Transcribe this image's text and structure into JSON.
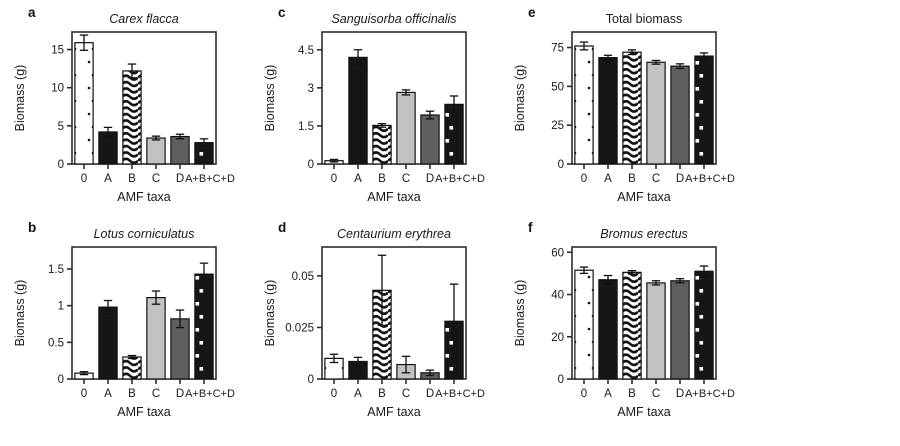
{
  "styles": {
    "background": "#ffffff",
    "frame_color": "#2e2e2e",
    "text_color": "#1a1a1a",
    "bar_outline": "#111111",
    "bar_styles": [
      {
        "key": "0",
        "pattern": "dots",
        "fill": "#ffffff",
        "accent": "#111111",
        "description": "white-with-black-dots"
      },
      {
        "key": "A",
        "pattern": "solid",
        "fill": "#161616",
        "description": "solid-black"
      },
      {
        "key": "B",
        "pattern": "waves",
        "fill": "#ffffff",
        "accent": "#111111",
        "description": "black-wavy-stripes-on-white"
      },
      {
        "key": "C",
        "pattern": "solid",
        "fill": "#c2c2c2",
        "description": "light-gray"
      },
      {
        "key": "D",
        "pattern": "solid",
        "fill": "#5f5f5f",
        "description": "dark-gray"
      },
      {
        "key": "A+B+C+D",
        "pattern": "squares",
        "fill": "#161616",
        "accent": "#ffffff",
        "description": "black-with-white-squares"
      }
    ]
  },
  "chart_data": [
    {
      "panel_label": "a",
      "type": "bar",
      "title": "Carex flacca",
      "title_italic": true,
      "xlabel": "AMF taxa",
      "ylabel": "Biomass (g)",
      "categories": [
        "0",
        "A",
        "B",
        "C",
        "D",
        "A+B+C+D"
      ],
      "values": [
        15.9,
        4.2,
        12.2,
        3.4,
        3.6,
        2.8
      ],
      "errors": [
        1.0,
        0.6,
        0.9,
        0.25,
        0.3,
        0.5
      ],
      "ylim": [
        0,
        17.3
      ],
      "yticks": [
        0,
        5,
        10,
        15
      ],
      "ytick_labels": [
        "0",
        "5",
        "10",
        "15"
      ],
      "grid": false
    },
    {
      "panel_label": "b",
      "type": "bar",
      "title": "Lotus corniculatus",
      "title_italic": true,
      "xlabel": "AMF taxa",
      "ylabel": "Biomass (g)",
      "categories": [
        "0",
        "A",
        "B",
        "C",
        "D",
        "A+B+C+D"
      ],
      "values": [
        0.08,
        0.98,
        0.3,
        1.11,
        0.82,
        1.43
      ],
      "errors": [
        0.02,
        0.09,
        0.02,
        0.09,
        0.12,
        0.15
      ],
      "ylim": [
        0,
        1.8
      ],
      "yticks": [
        0,
        0.5,
        1,
        1.5
      ],
      "ytick_labels": [
        "0",
        "0.5",
        "1",
        "1.5"
      ],
      "grid": false
    },
    {
      "panel_label": "c",
      "type": "bar",
      "title": "Sanguisorba officinalis",
      "title_italic": true,
      "xlabel": "AMF taxa",
      "ylabel": "Biomass (g)",
      "categories": [
        "0",
        "A",
        "B",
        "C",
        "D",
        "A+B+C+D"
      ],
      "values": [
        0.13,
        4.2,
        1.52,
        2.82,
        1.93,
        2.35
      ],
      "errors": [
        0.05,
        0.3,
        0.07,
        0.1,
        0.15,
        0.33
      ],
      "ylim": [
        0,
        5.2
      ],
      "yticks": [
        0,
        1.5,
        3,
        4.5
      ],
      "ytick_labels": [
        "0",
        "1.5",
        "3",
        "4.5"
      ],
      "grid": false
    },
    {
      "panel_label": "d",
      "type": "bar",
      "title": "Centaurium erythrea",
      "title_italic": true,
      "xlabel": "AMF taxa",
      "ylabel": "Biomass (g)",
      "categories": [
        "0",
        "A",
        "B",
        "C",
        "D",
        "A+B+C+D"
      ],
      "values": [
        0.01,
        0.0085,
        0.043,
        0.007,
        0.003,
        0.028
      ],
      "errors": [
        0.002,
        0.002,
        0.017,
        0.004,
        0.0013,
        0.018
      ],
      "ylim": [
        0,
        0.064
      ],
      "yticks": [
        0,
        0.025,
        0.05
      ],
      "ytick_labels": [
        "0",
        "0.025",
        "0.05"
      ],
      "grid": false
    },
    {
      "panel_label": "e",
      "type": "bar",
      "title": "Total biomass",
      "title_italic": false,
      "xlabel": "AMF taxa",
      "ylabel": "Biomass (g)",
      "categories": [
        "0",
        "A",
        "B",
        "C",
        "D",
        "A+B+C+D"
      ],
      "values": [
        76,
        68.5,
        72,
        65.5,
        63,
        69.5
      ],
      "errors": [
        2.5,
        1.5,
        1.5,
        1.2,
        1.5,
        2
      ],
      "ylim": [
        0,
        85
      ],
      "yticks": [
        0,
        25,
        50,
        75
      ],
      "ytick_labels": [
        "0",
        "25",
        "50",
        "75"
      ],
      "grid": false
    },
    {
      "panel_label": "f",
      "type": "bar",
      "title": "Bromus erectus",
      "title_italic": true,
      "xlabel": "AMF taxa",
      "ylabel": "Biomass (g)",
      "categories": [
        "0",
        "A",
        "B",
        "C",
        "D",
        "A+B+C+D"
      ],
      "values": [
        51.5,
        47,
        50.5,
        45.5,
        46.5,
        51
      ],
      "errors": [
        1.5,
        2,
        0.8,
        1,
        1,
        2.5
      ],
      "ylim": [
        0,
        62.5
      ],
      "yticks": [
        0,
        20,
        40,
        60
      ],
      "ytick_labels": [
        "0",
        "20",
        "40",
        "60"
      ],
      "grid": false
    }
  ]
}
